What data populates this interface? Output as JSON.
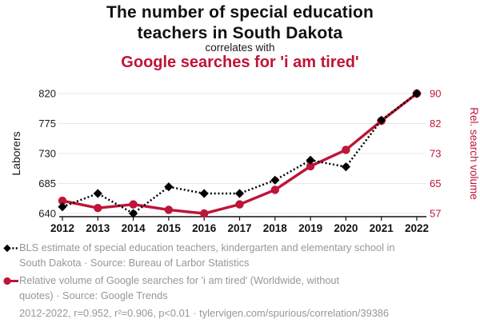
{
  "title": {
    "main": "The number of special education\nteachers in South Dakota",
    "connector": "correlates with",
    "subtitle": "Google searches for 'i am tired'"
  },
  "colors": {
    "accent_red": "#be1538",
    "series_black": "#000000",
    "legend_gray": "#979797",
    "gridline": "#e7e7e7",
    "axis_text": "#1a1a1a"
  },
  "chart_data": {
    "type": "line",
    "x": [
      2012,
      2013,
      2014,
      2015,
      2016,
      2017,
      2018,
      2019,
      2020,
      2021,
      2022
    ],
    "series": [
      {
        "name": "BLS estimate of special education teachers, kindergarten and elementary school in South Dakota",
        "axis": "left",
        "color": "#000000",
        "marker": "diamond",
        "line_style": "dashed",
        "values": [
          650,
          670,
          640,
          680,
          670,
          670,
          690,
          720,
          710,
          780,
          820
        ]
      },
      {
        "name": "Relative volume of Google searches for 'i am tired' (Worldwide, without quotes)",
        "axis": "right",
        "color": "#be1538",
        "marker": "circle",
        "line_style": "solid",
        "values": [
          60.5,
          58.5,
          59.5,
          58,
          57,
          59.5,
          63.5,
          70,
          74.5,
          82.5,
          90
        ]
      }
    ],
    "left_axis": {
      "label": "Laborers",
      "ticks": [
        640,
        685,
        730,
        775,
        820
      ],
      "range": [
        640,
        820
      ]
    },
    "right_axis": {
      "label": "Rel. search volume",
      "ticks": [
        57,
        65,
        73,
        82,
        90
      ],
      "range": [
        57,
        90
      ]
    },
    "grid": "horizontal",
    "legend_position": "bottom"
  },
  "legend": {
    "items": [
      {
        "id": "teachers",
        "text": "BLS estimate of special education teachers, kindergarten and elementary school in\nSouth Dakota · Source: Bureau of Larbor Statistics"
      },
      {
        "id": "searches",
        "text": "Relative volume of Google searches for 'i am tired' (Worldwide, without\nquotes) · Source: Google Trends"
      }
    ],
    "footer": "2012-2022, r=0.952, r²=0.906, p<0.01 · tylervigen.com/spurious/correlation/39386"
  }
}
